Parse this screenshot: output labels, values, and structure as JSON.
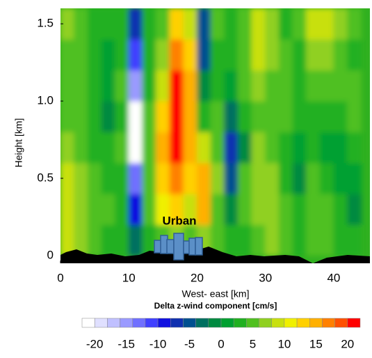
{
  "chart_data": {
    "type": "contour",
    "x_label": "West- east [km]",
    "y_label": "Height [km]",
    "colorbar_title": "Delta z-wind component  [cm/s]",
    "annotation": "Urban",
    "xlim": [
      0,
      45.3
    ],
    "ylim": [
      -0.05,
      1.6
    ],
    "xticks": [
      0,
      10,
      20,
      30,
      40
    ],
    "yticks": [
      0,
      0.5,
      {
        "value": 1,
        "label": "1.0"
      },
      1.5
    ],
    "x_edges": [
      0,
      2,
      4,
      6,
      8,
      10,
      12,
      14,
      16,
      18,
      20,
      22,
      24,
      26,
      28,
      30,
      32,
      34,
      36,
      38,
      40,
      42,
      44
    ],
    "y_edges": [
      0,
      0.2,
      0.4,
      0.6,
      0.8,
      1.0,
      1.2,
      1.4,
      1.6
    ],
    "z": [
      [
        8,
        6,
        4,
        3,
        3,
        -4,
        3,
        5,
        6,
        4,
        6,
        4,
        2,
        3,
        5,
        6,
        4,
        3,
        4,
        5,
        3,
        2
      ],
      [
        9,
        7,
        5,
        4,
        3,
        -10,
        4,
        11,
        12,
        8,
        15,
        5,
        -1,
        4,
        6,
        7,
        5,
        2,
        5,
        4,
        2,
        -1
      ],
      [
        8,
        6,
        4,
        3,
        2,
        -14,
        5,
        13,
        17,
        12,
        14,
        6,
        -5,
        4,
        7,
        6,
        3,
        -1,
        4,
        2,
        0,
        0
      ],
      [
        6,
        5,
        3,
        2,
        4,
        -21,
        5,
        14,
        21,
        15,
        8,
        5,
        -7,
        -1,
        6,
        5,
        2,
        1,
        3,
        1,
        1,
        2
      ],
      [
        5,
        4,
        2,
        -1,
        3,
        -21,
        4,
        13,
        21,
        14,
        2,
        4,
        -3,
        3,
        5,
        4,
        4,
        3,
        2,
        3,
        3,
        4
      ],
      [
        4,
        5,
        3,
        0,
        4,
        -16,
        3,
        9,
        20,
        14,
        -2,
        3,
        1,
        4,
        6,
        5,
        5,
        3,
        4,
        5,
        4,
        5
      ],
      [
        5,
        4,
        2,
        1,
        3,
        -12,
        3,
        6,
        17,
        13,
        -5,
        3,
        2,
        5,
        8,
        6,
        4,
        2,
        6,
        6,
        5,
        3
      ],
      [
        6,
        5,
        3,
        2,
        2,
        -8,
        3,
        5,
        12,
        9,
        -6,
        4,
        3,
        5,
        9,
        7,
        3,
        4,
        8,
        8,
        6,
        4
      ]
    ],
    "levels": [
      -22,
      -20,
      -18,
      -16,
      -14,
      -12,
      -10,
      -8,
      -6,
      -4,
      -2,
      0,
      2,
      4,
      6,
      8,
      10,
      12,
      14,
      16,
      18,
      20,
      22
    ],
    "colors": [
      "#ffffff",
      "#e0e0ff",
      "#c0c0ff",
      "#9a9aff",
      "#7070ff",
      "#4040ff",
      "#1010e0",
      "#1030b0",
      "#005090",
      "#007060",
      "#008a40",
      "#00a030",
      "#20b020",
      "#50c020",
      "#90d020",
      "#c8e010",
      "#f0f000",
      "#ffd000",
      "#ffb000",
      "#ff8000",
      "#ff5000",
      "#ff0000"
    ],
    "colorbar_ticks": [
      -20,
      -15,
      -10,
      -5,
      0,
      5,
      10,
      15,
      20
    ]
  }
}
